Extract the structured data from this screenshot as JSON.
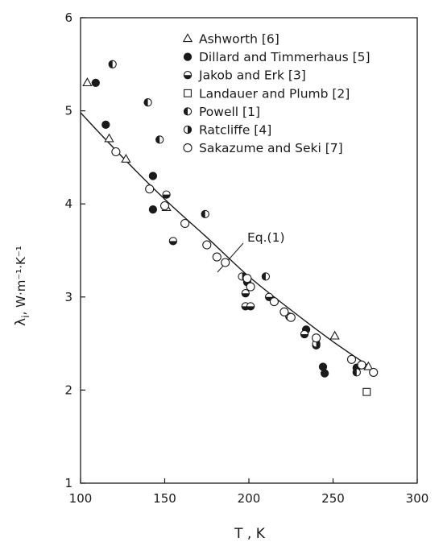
{
  "chart_data": {
    "type": "scatter",
    "xlabel": "T , K",
    "ylabel_main": "λ",
    "ylabel_sub": "i",
    "ylabel_units": ",   W·m⁻¹·K⁻¹",
    "xlim": [
      100,
      300
    ],
    "ylim": [
      1,
      6
    ],
    "xticks": [
      100,
      150,
      200,
      250,
      300
    ],
    "yticks": [
      1,
      2,
      3,
      4,
      5,
      6
    ],
    "grid": false,
    "legend_position": "top-right",
    "series": [
      {
        "name": "Ashworth  [6]",
        "marker": "triangle",
        "points": [
          [
            104,
            5.3
          ],
          [
            117,
            4.7
          ],
          [
            127,
            4.48
          ],
          [
            151,
            3.96
          ],
          [
            251,
            2.58
          ],
          [
            271,
            2.25
          ]
        ]
      },
      {
        "name": "Dillard and Timmerhaus [5]",
        "marker": "filled",
        "points": [
          [
            109,
            5.3
          ],
          [
            115,
            4.85
          ],
          [
            143,
            4.3
          ],
          [
            143,
            3.94
          ],
          [
            199,
            3.16
          ],
          [
            234,
            2.65
          ],
          [
            244,
            2.25
          ],
          [
            245,
            2.18
          ],
          [
            264,
            2.24
          ]
        ]
      },
      {
        "name": "Jakob and Erk  [3]",
        "marker": "half-bottom",
        "points": [
          [
            151,
            4.1
          ],
          [
            155,
            3.6
          ],
          [
            198,
            3.04
          ],
          [
            198,
            2.9
          ],
          [
            201,
            2.9
          ],
          [
            212,
            3.0
          ],
          [
            224,
            2.79
          ],
          [
            233,
            2.6
          ],
          [
            240,
            2.48
          ]
        ]
      },
      {
        "name": "Landauer and Plumb [2]",
        "marker": "square",
        "points": [
          [
            270,
            1.98
          ]
        ]
      },
      {
        "name": "Powell  [1]",
        "marker": "half-left",
        "points": [
          [
            119,
            5.5
          ],
          [
            140,
            5.09
          ],
          [
            147,
            4.69
          ],
          [
            174,
            3.89
          ],
          [
            210,
            3.22
          ],
          [
            264,
            2.19
          ]
        ]
      },
      {
        "name": "Ratcliffe  [4]",
        "marker": "half-right",
        "points": [
          [
            196,
            3.22
          ],
          [
            240,
            2.5
          ]
        ]
      },
      {
        "name": "Sakazume and Seki  [7]",
        "marker": "open-circle",
        "points": [
          [
            121,
            4.56
          ],
          [
            141,
            4.16
          ],
          [
            150,
            3.98
          ],
          [
            162,
            3.79
          ],
          [
            175,
            3.56
          ],
          [
            181,
            3.43
          ],
          [
            186,
            3.37
          ],
          [
            199,
            3.2
          ],
          [
            201,
            3.11
          ],
          [
            215,
            2.95
          ],
          [
            221,
            2.84
          ],
          [
            225,
            2.78
          ],
          [
            240,
            2.56
          ],
          [
            261,
            2.33
          ],
          [
            267,
            2.27
          ],
          [
            274,
            2.19
          ]
        ]
      }
    ],
    "curve": {
      "label": "Eq.(1)",
      "points": [
        [
          100,
          4.98
        ],
        [
          125,
          4.5
        ],
        [
          150,
          4.05
        ],
        [
          175,
          3.64
        ],
        [
          200,
          3.22
        ],
        [
          225,
          2.86
        ],
        [
          250,
          2.52
        ],
        [
          272,
          2.25
        ]
      ]
    }
  }
}
